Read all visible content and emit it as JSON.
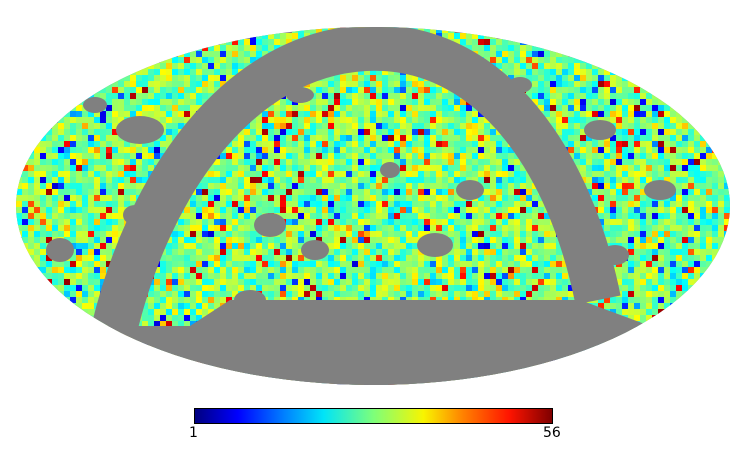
{
  "map": {
    "projection": "mollweide",
    "masked_color": "#808080",
    "background_color": "#ffffff",
    "colormap": "jet"
  },
  "colorbar": {
    "min_label": "1",
    "max_label": "56",
    "min_value": 1,
    "max_value": 56
  }
}
